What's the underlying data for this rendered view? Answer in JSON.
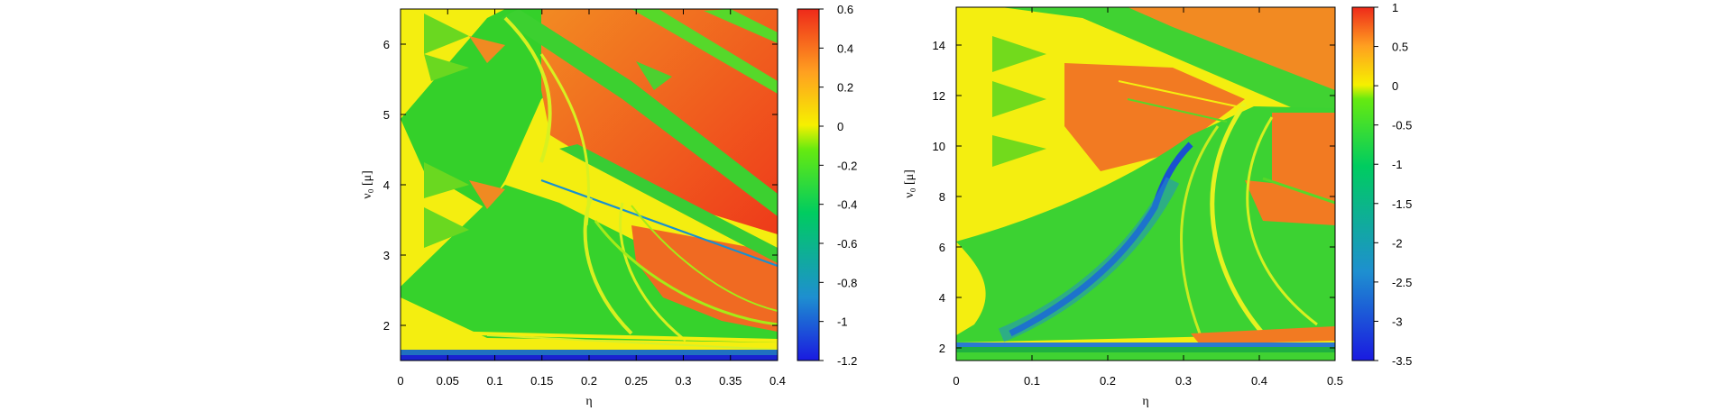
{
  "chart_data": [
    {
      "type": "heatmap",
      "xlabel": "η",
      "ylabel": "ν₀ [μ]",
      "xlim": [
        0,
        0.4
      ],
      "ylim": [
        1.5,
        6.5
      ],
      "x_ticks": [
        0,
        0.05,
        0.1,
        0.15,
        0.2,
        0.25,
        0.3,
        0.35,
        0.4
      ],
      "x_tick_labels": [
        "0",
        "0.05",
        "0.1",
        "0.15",
        "0.2",
        "0.25",
        "0.3",
        "0.35",
        "0.4"
      ],
      "y_ticks": [
        2,
        3,
        4,
        5,
        6
      ],
      "y_tick_labels": [
        "2",
        "3",
        "4",
        "5",
        "6"
      ],
      "colorbar": {
        "range": [
          -1.2,
          0.6
        ],
        "ticks": [
          0.6,
          0.4,
          0.2,
          0,
          -0.2,
          -0.4,
          -0.6,
          -0.8,
          -1,
          -1.2
        ],
        "tick_labels": [
          "0.6",
          "0.4",
          "0.2",
          "0",
          "-0.2",
          "-0.4",
          "-0.6",
          "-0.8",
          "-1",
          "-1.2"
        ]
      },
      "colormap": [
        "#1a1ae0",
        "#1e8fd0",
        "#00d060",
        "#5cea10",
        "#f6f000",
        "#ffa020",
        "#ee2a1a"
      ]
    },
    {
      "type": "heatmap",
      "xlabel": "η",
      "ylabel": "ν₀ [μ]",
      "xlim": [
        0,
        0.5
      ],
      "ylim": [
        1.5,
        15.5
      ],
      "x_ticks": [
        0,
        0.1,
        0.2,
        0.3,
        0.4,
        0.5
      ],
      "x_tick_labels": [
        "0",
        "0.1",
        "0.2",
        "0.3",
        "0.4",
        "0.5"
      ],
      "y_ticks": [
        2,
        4,
        6,
        8,
        10,
        12,
        14
      ],
      "y_tick_labels": [
        "2",
        "4",
        "6",
        "8",
        "10",
        "12",
        "14"
      ],
      "colorbar": {
        "range": [
          -3.5,
          1
        ],
        "ticks": [
          1,
          0.5,
          0,
          -0.5,
          -1,
          -1.5,
          -2,
          -2.5,
          -3,
          -3.5
        ],
        "tick_labels": [
          "1",
          "0.5",
          "0",
          "-0.5",
          "-1",
          "-1.5",
          "-2",
          "-2.5",
          "-3",
          "-3.5"
        ]
      },
      "colormap": [
        "#1a1ae0",
        "#1e8fd0",
        "#00d060",
        "#5cea10",
        "#f6f000",
        "#ffa020",
        "#ee2a1a"
      ]
    }
  ]
}
